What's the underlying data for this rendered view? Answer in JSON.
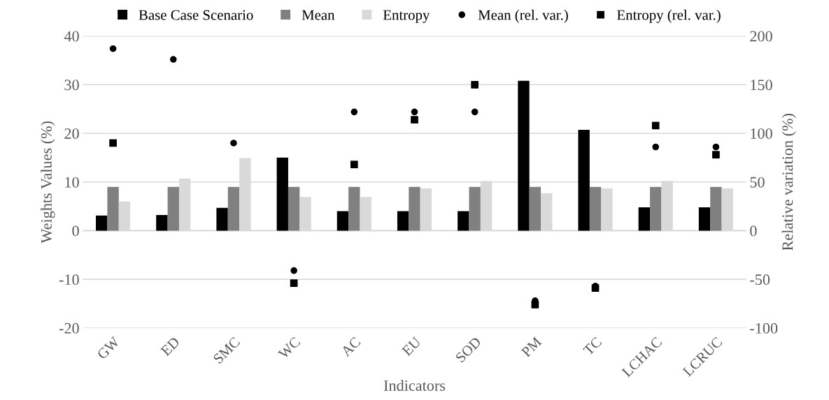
{
  "chart_data": {
    "type": "bar",
    "xlabel": "Indicators",
    "ylabel": "Weights Values (%)",
    "y2label": "Relative variation (%)",
    "categories": [
      "GW",
      "ED",
      "SMC",
      "WC",
      "AC",
      "EU",
      "SOD",
      "PM",
      "TC",
      "LCHAC",
      "LCRUC"
    ],
    "series": [
      {
        "name": "Base Case Scenario",
        "color": "#000000",
        "values": [
          3.1,
          3.2,
          4.7,
          15.0,
          4.0,
          4.0,
          4.0,
          30.8,
          20.7,
          4.8,
          4.8
        ]
      },
      {
        "name": "Mean",
        "color": "#808080",
        "values": [
          9.0,
          9.0,
          9.0,
          9.0,
          9.0,
          9.0,
          9.0,
          9.0,
          9.0,
          9.0,
          9.0
        ]
      },
      {
        "name": "Entropy",
        "color": "#d9d9d9",
        "values": [
          6.0,
          10.7,
          14.9,
          6.9,
          6.9,
          8.7,
          10.2,
          7.7,
          8.7,
          10.2,
          8.7
        ]
      },
      {
        "name": "Mean (rel. var.)",
        "type": "scatter",
        "marker": "circle",
        "axis": "y2",
        "color": "#000000",
        "values": [
          187,
          176,
          90,
          -41,
          122,
          122,
          122,
          -72,
          -57,
          86,
          86
        ]
      },
      {
        "name": "Entropy (rel. var.)",
        "type": "scatter",
        "marker": "square",
        "axis": "y2",
        "color": "#000000",
        "values": [
          90,
          null,
          null,
          -54,
          68,
          114,
          150,
          -76,
          -59,
          108,
          78
        ]
      }
    ],
    "ylim": [
      -20,
      40
    ],
    "yticks": [
      -20,
      -10,
      0,
      10,
      20,
      30,
      40
    ],
    "y2lim": [
      -100,
      200
    ],
    "y2ticks": [
      -100,
      -50,
      0,
      50,
      100,
      150,
      200
    ],
    "grid": "y",
    "legend": "top"
  }
}
